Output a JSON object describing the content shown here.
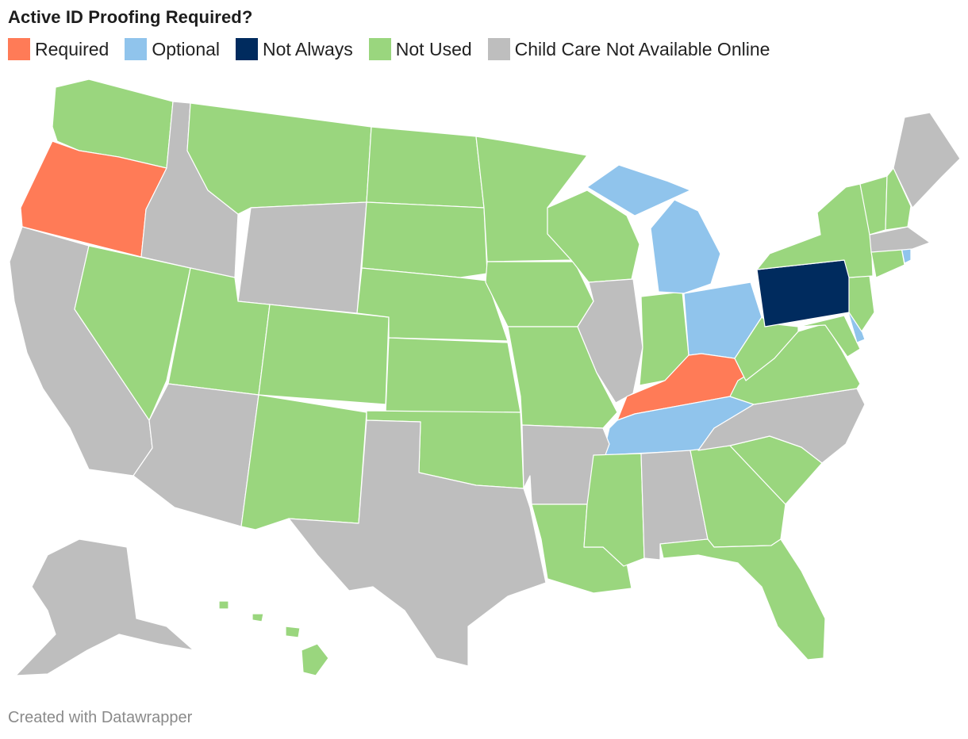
{
  "title": "Active ID Proofing Required?",
  "legend": [
    {
      "label": "Required",
      "color": "#ff7b57"
    },
    {
      "label": "Optional",
      "color": "#90c4ec"
    },
    {
      "label": "Not Always",
      "color": "#002b5e"
    },
    {
      "label": "Not Used",
      "color": "#9ad67e"
    },
    {
      "label": "Child Care Not Available Online",
      "color": "#bebebe"
    }
  ],
  "states": {
    "Required": [
      "OR",
      "KY"
    ],
    "Optional": [
      "MI",
      "OH",
      "TN",
      "DE",
      "RI"
    ],
    "Not Always": [
      "PA"
    ],
    "Not Used": [
      "WA",
      "MT",
      "ND",
      "MN",
      "WI",
      "SD",
      "NE",
      "IA",
      "NV",
      "UT",
      "CO",
      "KS",
      "MO",
      "NM",
      "OK",
      "IN",
      "WV",
      "VA",
      "MD",
      "NJ",
      "NY",
      "CT",
      "VT",
      "NH",
      "LA",
      "MS",
      "GA",
      "SC",
      "FL",
      "HI"
    ],
    "Child Care Not Available Online": [
      "CA",
      "ID",
      "WY",
      "AZ",
      "TX",
      "IL",
      "AR",
      "AL",
      "NC",
      "ME",
      "MA",
      "AK"
    ]
  },
  "footer": "Created with Datawrapper"
}
